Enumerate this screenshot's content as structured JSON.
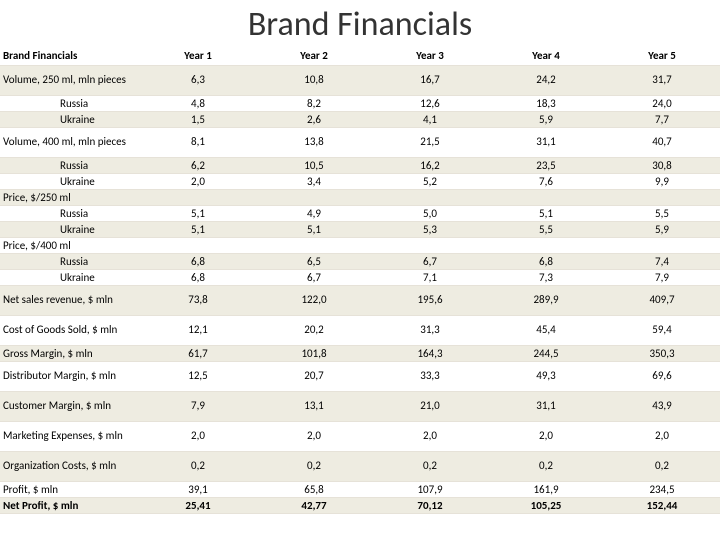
{
  "title": "Brand Financials",
  "colors": {
    "band": "#eeece1",
    "border": "#e6e2d8",
    "text": "#000000",
    "title": "#333333"
  },
  "columns": [
    "Brand Financials",
    "Year 1",
    "Year 2",
    "Year 3",
    "Year 4",
    "Year 5"
  ],
  "rows": [
    {
      "label": "Volume, 250 ml, mln pieces",
      "values": [
        "6,3",
        "10,8",
        "16,7",
        "24,2",
        "31,7"
      ],
      "band": true,
      "tall": true
    },
    {
      "label": "Russia",
      "values": [
        "4,8",
        "8,2",
        "12,6",
        "18,3",
        "24,0"
      ],
      "indent": true
    },
    {
      "label": "Ukraine",
      "values": [
        "1,5",
        "2,6",
        "4,1",
        "5,9",
        "7,7"
      ],
      "indent": true,
      "band": true
    },
    {
      "label": "Volume, 400 ml, mln pieces",
      "values": [
        "8,1",
        "13,8",
        "21,5",
        "31,1",
        "40,7"
      ],
      "tall": true
    },
    {
      "label": "Russia",
      "values": [
        "6,2",
        "10,5",
        "16,2",
        "23,5",
        "30,8"
      ],
      "indent": true,
      "band": true
    },
    {
      "label": "Ukraine",
      "values": [
        "2,0",
        "3,4",
        "5,2",
        "7,6",
        "9,9"
      ],
      "indent": true
    },
    {
      "label": "Price, $/250 ml",
      "values": [
        "",
        "",
        "",
        "",
        ""
      ],
      "band": true
    },
    {
      "label": "Russia",
      "values": [
        "5,1",
        "4,9",
        "5,0",
        "5,1",
        "5,5"
      ],
      "indent": true
    },
    {
      "label": "Ukraine",
      "values": [
        "5,1",
        "5,1",
        "5,3",
        "5,5",
        "5,9"
      ],
      "indent": true,
      "band": true
    },
    {
      "label": "Price, $/400 ml",
      "values": [
        "",
        "",
        "",
        "",
        ""
      ]
    },
    {
      "label": "Russia",
      "values": [
        "6,8",
        "6,5",
        "6,7",
        "6,8",
        "7,4"
      ],
      "indent": true,
      "band": true
    },
    {
      "label": "Ukraine",
      "values": [
        "6,8",
        "6,7",
        "7,1",
        "7,3",
        "7,9"
      ],
      "indent": true
    },
    {
      "label": "Net sales revenue,  $ mln",
      "values": [
        "73,8",
        "122,0",
        "195,6",
        "289,9",
        "409,7"
      ],
      "band": true,
      "tall": true
    },
    {
      "label": "Cost of Goods Sold, $ mln",
      "values": [
        "12,1",
        "20,2",
        "31,3",
        "45,4",
        "59,4"
      ],
      "tall": true
    },
    {
      "label": "Gross Margin,  $ mln",
      "values": [
        "61,7",
        "101,8",
        "164,3",
        "244,5",
        "350,3"
      ],
      "band": true
    },
    {
      "label": "Distributor Margin,  $ mln",
      "values": [
        "12,5",
        "20,7",
        "33,3",
        "49,3",
        "69,6"
      ],
      "tall": true
    },
    {
      "label": "Customer Margin, $ mln",
      "values": [
        "7,9",
        "13,1",
        "21,0",
        "31,1",
        "43,9"
      ],
      "band": true,
      "tall": true
    },
    {
      "label": "Marketing Expenses, $ mln",
      "values": [
        "2,0",
        "2,0",
        "2,0",
        "2,0",
        "2,0"
      ],
      "tall": true
    },
    {
      "label": "Organization Costs, $ mln",
      "values": [
        "0,2",
        "0,2",
        "0,2",
        "0,2",
        "0,2"
      ],
      "band": true,
      "tall": true
    },
    {
      "label": "Profit, $ mln",
      "values": [
        "39,1",
        "65,8",
        "107,9",
        "161,9",
        "234,5"
      ]
    },
    {
      "label": "Net Profit, $ mln",
      "values": [
        "25,41",
        "42,77",
        "70,12",
        "105,25",
        "152,44"
      ],
      "band": true,
      "bold": true
    }
  ]
}
